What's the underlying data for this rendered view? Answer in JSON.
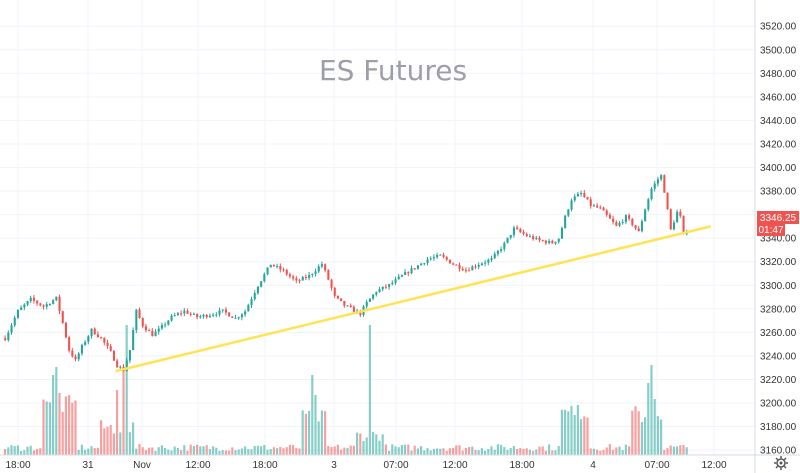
{
  "chart_data": {
    "type": "candlestick",
    "title": "ES Futures",
    "ylim": [
      3140,
      3530
    ],
    "yticks": [
      3160,
      3180,
      3200,
      3220,
      3240,
      3260,
      3280,
      3300,
      3320,
      3340,
      3360,
      3380,
      3400,
      3420,
      3440,
      3460,
      3480,
      3500,
      3520
    ],
    "xticks": [
      "18:00",
      "31",
      "Nov",
      "12:00",
      "18:00",
      "3",
      "07:00",
      "12:00",
      "18:00",
      "4",
      "07:00",
      "12:00"
    ],
    "last_price": "3346.25",
    "countdown": "01:47",
    "colors": {
      "up": "#26a69a",
      "down": "#ef5350",
      "trendline": "#ffe352",
      "price_label": "#ef5350",
      "grid": "#f0f3fa",
      "title": "#9e9ea6"
    },
    "trendline": {
      "from": {
        "bar": 35,
        "price": 3227
      },
      "to": {
        "bar": 221,
        "price": 3350
      }
    },
    "anchors": [
      [
        0,
        3255
      ],
      [
        4,
        3278
      ],
      [
        8,
        3288
      ],
      [
        12,
        3282
      ],
      [
        16,
        3289
      ],
      [
        18,
        3268
      ],
      [
        20,
        3245
      ],
      [
        22,
        3236
      ],
      [
        24,
        3248
      ],
      [
        27,
        3262
      ],
      [
        30,
        3255
      ],
      [
        33,
        3243
      ],
      [
        35,
        3232
      ],
      [
        37,
        3228
      ],
      [
        39,
        3245
      ],
      [
        41,
        3278
      ],
      [
        43,
        3266
      ],
      [
        46,
        3258
      ],
      [
        48,
        3262
      ],
      [
        52,
        3273
      ],
      [
        56,
        3278
      ],
      [
        60,
        3273
      ],
      [
        64,
        3275
      ],
      [
        68,
        3278
      ],
      [
        72,
        3272
      ],
      [
        75,
        3278
      ],
      [
        79,
        3300
      ],
      [
        83,
        3318
      ],
      [
        87,
        3312
      ],
      [
        91,
        3303
      ],
      [
        95,
        3308
      ],
      [
        99,
        3318
      ],
      [
        101,
        3305
      ],
      [
        103,
        3290
      ],
      [
        106,
        3283
      ],
      [
        108,
        3280
      ],
      [
        111,
        3276
      ],
      [
        113,
        3285
      ],
      [
        116,
        3295
      ],
      [
        120,
        3300
      ],
      [
        124,
        3308
      ],
      [
        128,
        3315
      ],
      [
        132,
        3322
      ],
      [
        136,
        3325
      ],
      [
        140,
        3318
      ],
      [
        144,
        3313
      ],
      [
        148,
        3318
      ],
      [
        152,
        3322
      ],
      [
        156,
        3335
      ],
      [
        159,
        3348
      ],
      [
        163,
        3342
      ],
      [
        167,
        3338
      ],
      [
        171,
        3336
      ],
      [
        173,
        3340
      ],
      [
        175,
        3358
      ],
      [
        177,
        3373
      ],
      [
        180,
        3378
      ],
      [
        183,
        3368
      ],
      [
        186,
        3365
      ],
      [
        189,
        3356
      ],
      [
        191,
        3350
      ],
      [
        194,
        3358
      ],
      [
        196,
        3352
      ],
      [
        198,
        3345
      ],
      [
        200,
        3365
      ],
      [
        202,
        3382
      ],
      [
        204,
        3390
      ],
      [
        205,
        3393
      ],
      [
        206,
        3380
      ],
      [
        208,
        3347
      ],
      [
        210,
        3362
      ],
      [
        211,
        3358
      ],
      [
        212,
        3342
      ],
      [
        213,
        3346
      ]
    ],
    "volume_spikes": [
      [
        15,
        80
      ],
      [
        16,
        88
      ],
      [
        17,
        62
      ],
      [
        35,
        65
      ],
      [
        37,
        88
      ],
      [
        38,
        130
      ],
      [
        96,
        80
      ],
      [
        97,
        60
      ],
      [
        114,
        130
      ],
      [
        178,
        40
      ],
      [
        179,
        50
      ],
      [
        201,
        72
      ],
      [
        202,
        90
      ],
      [
        203,
        56
      ]
    ],
    "volume_high_ranges": [
      [
        12,
        22,
        40,
        60
      ],
      [
        30,
        40,
        20,
        35
      ],
      [
        93,
        100,
        30,
        45
      ],
      [
        110,
        118,
        14,
        26
      ],
      [
        174,
        182,
        35,
        50
      ],
      [
        196,
        205,
        30,
        50
      ]
    ]
  }
}
